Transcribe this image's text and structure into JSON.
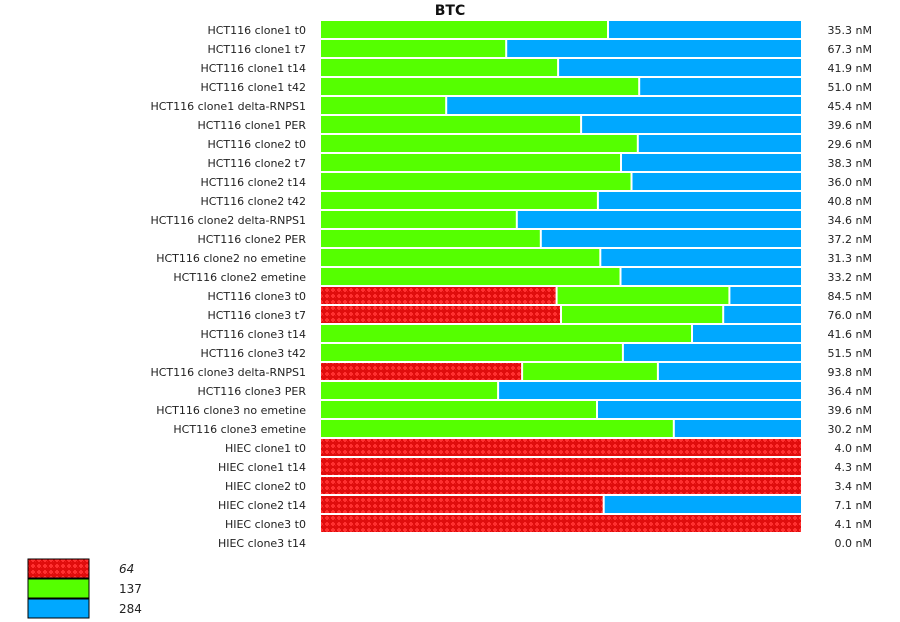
{
  "chart_data": {
    "type": "bar",
    "orientation": "horizontal",
    "stacked": true,
    "normalized": true,
    "title": "BTC",
    "xlabel": "",
    "ylabel": "",
    "grid": false,
    "legend_position": "bottom-left",
    "legend": [
      {
        "label": "64",
        "color": "#ee1111",
        "pattern": "dotted-hatch",
        "italic": true
      },
      {
        "label": "137",
        "color": "#55ff00",
        "pattern": "solid",
        "italic": false
      },
      {
        "label": "284",
        "color": "#00a8ff",
        "pattern": "solid",
        "italic": false
      }
    ],
    "categories": [
      "HCT116 clone1 t0",
      "HCT116 clone1 t7",
      "HCT116 clone1 t14",
      "HCT116 clone1 t42",
      "HCT116 clone1 delta-RNPS1",
      "HCT116 clone1 PER",
      "HCT116 clone2 t0",
      "HCT116 clone2 t7",
      "HCT116 clone2 t14",
      "HCT116 clone2 t42",
      "HCT116 clone2 delta-RNPS1",
      "HCT116 clone2 PER",
      "HCT116 clone2 no emetine",
      "HCT116 clone2 emetine",
      "HCT116 clone3 t0",
      "HCT116 clone3 t7",
      "HCT116 clone3 t14",
      "HCT116 clone3 t42",
      "HCT116 clone3 delta-RNPS1",
      "HCT116 clone3 PER",
      "HCT116 clone3 no emetine",
      "HCT116 clone3 emetine",
      "HIEC clone1 t0",
      "HIEC clone1 t14",
      "HIEC clone2 t0",
      "HIEC clone2 t14",
      "HIEC clone3 t0",
      "HIEC clone3 t14"
    ],
    "series": [
      {
        "name": "64",
        "values": [
          0,
          0,
          0,
          0,
          0,
          0,
          0,
          0,
          0,
          0,
          0,
          0,
          0,
          0,
          0.493,
          0.502,
          0,
          0,
          0.421,
          0,
          0,
          0,
          1.0,
          1.0,
          1.0,
          0.591,
          1.0,
          0
        ]
      },
      {
        "name": "137",
        "values": [
          0.6,
          0.388,
          0.496,
          0.665,
          0.263,
          0.544,
          0.662,
          0.627,
          0.649,
          0.579,
          0.41,
          0.46,
          0.584,
          0.626,
          0.36,
          0.338,
          0.775,
          0.631,
          0.283,
          0.371,
          0.577,
          0.737,
          0,
          0,
          0,
          0,
          0,
          0
        ]
      },
      {
        "name": "284",
        "values": [
          0.4,
          0.612,
          0.504,
          0.335,
          0.737,
          0.456,
          0.338,
          0.373,
          0.351,
          0.421,
          0.59,
          0.54,
          0.416,
          0.374,
          0.147,
          0.16,
          0.225,
          0.369,
          0.296,
          0.629,
          0.423,
          0.263,
          0,
          0,
          0,
          0.409,
          0,
          0
        ]
      }
    ],
    "value_labels": [
      "35.3 nM",
      "67.3 nM",
      "41.9 nM",
      "51.0 nM",
      "45.4 nM",
      "39.6 nM",
      "29.6 nM",
      "38.3 nM",
      "36.0 nM",
      "40.8 nM",
      "34.6 nM",
      "37.2 nM",
      "31.3 nM",
      "33.2 nM",
      "84.5 nM",
      "76.0 nM",
      "41.6 nM",
      "51.5 nM",
      "93.8 nM",
      "36.4 nM",
      "39.6 nM",
      "30.2 nM",
      "4.0 nM",
      "4.3 nM",
      "3.4 nM",
      "7.1 nM",
      "4.1 nM",
      "0.0 nM"
    ],
    "xlim": [
      0,
      1
    ]
  }
}
